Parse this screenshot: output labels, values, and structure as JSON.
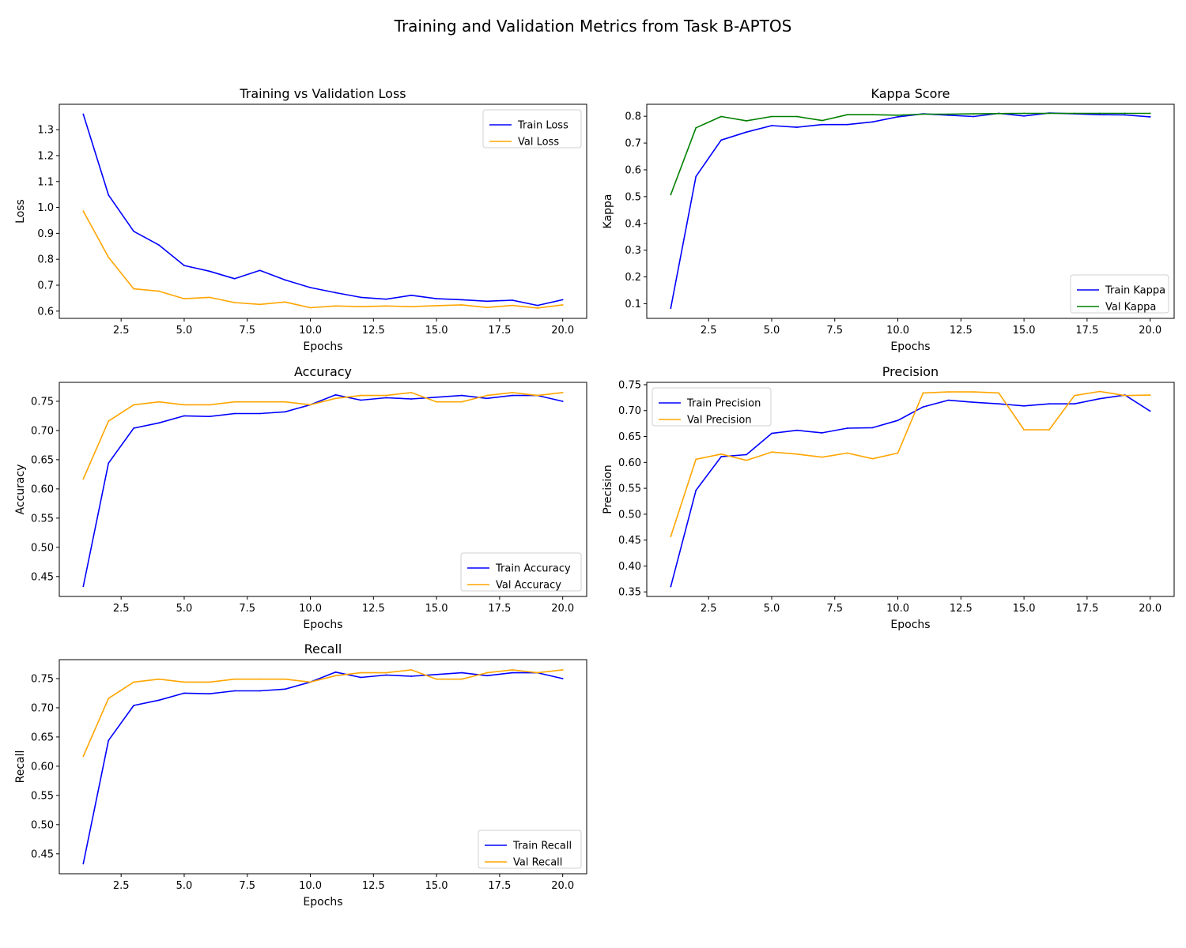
{
  "figure_title": "Training and Validation Metrics from Task B-APTOS",
  "colors": {
    "train": "#0000ff",
    "val": "#ffa500",
    "val_kappa": "#008000"
  },
  "chart_data": [
    {
      "type": "line",
      "title": "Training vs Validation Loss",
      "xlabel": "Epochs",
      "ylabel": "Loss",
      "xlim": [
        0.05,
        20.95
      ],
      "ylim": [
        0.572,
        1.398
      ],
      "xticks": [
        2.5,
        5.0,
        7.5,
        10.0,
        12.5,
        15.0,
        17.5,
        20.0
      ],
      "yticks": [
        0.6,
        0.7,
        0.8,
        0.9,
        1.0,
        1.1,
        1.2,
        1.3
      ],
      "legend": "top-right",
      "x": [
        1,
        2,
        3,
        4,
        5,
        6,
        7,
        8,
        9,
        10,
        11,
        12,
        13,
        14,
        15,
        16,
        17,
        18,
        19,
        20
      ],
      "series": [
        {
          "name": "Train Loss",
          "color": "#0000ff",
          "values": [
            1.36,
            1.048,
            0.908,
            0.855,
            0.776,
            0.754,
            0.725,
            0.757,
            0.72,
            0.691,
            0.671,
            0.653,
            0.646,
            0.661,
            0.648,
            0.644,
            0.638,
            0.642,
            0.622,
            0.644
          ]
        },
        {
          "name": "Val Loss",
          "color": "#ffa500",
          "values": [
            0.986,
            0.808,
            0.686,
            0.677,
            0.648,
            0.653,
            0.633,
            0.626,
            0.635,
            0.613,
            0.62,
            0.617,
            0.62,
            0.617,
            0.621,
            0.624,
            0.614,
            0.622,
            0.612,
            0.624
          ]
        }
      ]
    },
    {
      "type": "line",
      "title": "Kappa Score",
      "xlabel": "Epochs",
      "ylabel": "Kappa",
      "xlim": [
        0.05,
        20.95
      ],
      "ylim": [
        0.0452,
        0.8448
      ],
      "xticks": [
        2.5,
        5.0,
        7.5,
        10.0,
        12.5,
        15.0,
        17.5,
        20.0
      ],
      "yticks": [
        0.1,
        0.2,
        0.3,
        0.4,
        0.5,
        0.6,
        0.7,
        0.8
      ],
      "legend": "bottom-right",
      "x": [
        1,
        2,
        3,
        4,
        5,
        6,
        7,
        8,
        9,
        10,
        11,
        12,
        13,
        14,
        15,
        16,
        17,
        18,
        19,
        20
      ],
      "series": [
        {
          "name": "Train Kappa",
          "color": "#0000ff",
          "values": [
            0.083,
            0.575,
            0.711,
            0.741,
            0.765,
            0.759,
            0.769,
            0.769,
            0.779,
            0.798,
            0.809,
            0.804,
            0.799,
            0.811,
            0.801,
            0.812,
            0.809,
            0.806,
            0.805,
            0.798
          ]
        },
        {
          "name": "Val Kappa",
          "color": "#008000",
          "values": [
            0.507,
            0.757,
            0.799,
            0.783,
            0.799,
            0.799,
            0.784,
            0.806,
            0.806,
            0.804,
            0.808,
            0.808,
            0.809,
            0.81,
            0.811,
            0.811,
            0.811,
            0.811,
            0.811,
            0.811
          ]
        }
      ]
    },
    {
      "type": "line",
      "title": "Accuracy",
      "xlabel": "Epochs",
      "ylabel": "Accuracy",
      "xlim": [
        0.05,
        20.95
      ],
      "ylim": [
        0.4159,
        0.7824
      ],
      "xticks": [
        2.5,
        5.0,
        7.5,
        10.0,
        12.5,
        15.0,
        17.5,
        20.0
      ],
      "yticks": [
        0.45,
        0.5,
        0.55,
        0.6,
        0.65,
        0.7,
        0.75
      ],
      "legend": "bottom-right",
      "x": [
        1,
        2,
        3,
        4,
        5,
        6,
        7,
        8,
        9,
        10,
        11,
        12,
        13,
        14,
        15,
        16,
        17,
        18,
        19,
        20
      ],
      "series": [
        {
          "name": "Train Accuracy",
          "color": "#0000ff",
          "values": [
            0.433,
            0.644,
            0.704,
            0.713,
            0.725,
            0.724,
            0.729,
            0.729,
            0.732,
            0.744,
            0.761,
            0.752,
            0.756,
            0.754,
            0.757,
            0.76,
            0.755,
            0.76,
            0.76,
            0.75
          ]
        },
        {
          "name": "Val Accuracy",
          "color": "#ffa500",
          "values": [
            0.617,
            0.716,
            0.744,
            0.749,
            0.744,
            0.744,
            0.749,
            0.749,
            0.749,
            0.744,
            0.755,
            0.76,
            0.76,
            0.765,
            0.749,
            0.749,
            0.76,
            0.765,
            0.76,
            0.765
          ]
        }
      ]
    },
    {
      "type": "line",
      "title": "Precision",
      "xlabel": "Epochs",
      "ylabel": "Precision",
      "xlim": [
        0.05,
        20.95
      ],
      "ylim": [
        0.3412,
        0.7545
      ],
      "xticks": [
        2.5,
        5.0,
        7.5,
        10.0,
        12.5,
        15.0,
        17.5,
        20.0
      ],
      "yticks": [
        0.35,
        0.4,
        0.45,
        0.5,
        0.55,
        0.6,
        0.65,
        0.7,
        0.75
      ],
      "legend": "top-left",
      "x": [
        1,
        2,
        3,
        4,
        5,
        6,
        7,
        8,
        9,
        10,
        11,
        12,
        13,
        14,
        15,
        16,
        17,
        18,
        19,
        20
      ],
      "series": [
        {
          "name": "Train Precision",
          "color": "#0000ff",
          "values": [
            0.36,
            0.546,
            0.611,
            0.615,
            0.656,
            0.662,
            0.657,
            0.666,
            0.667,
            0.681,
            0.707,
            0.72,
            0.716,
            0.713,
            0.709,
            0.713,
            0.713,
            0.723,
            0.73,
            0.699
          ]
        },
        {
          "name": "Val Precision",
          "color": "#ffa500",
          "values": [
            0.457,
            0.606,
            0.616,
            0.604,
            0.62,
            0.616,
            0.61,
            0.618,
            0.607,
            0.618,
            0.734,
            0.736,
            0.736,
            0.734,
            0.663,
            0.663,
            0.729,
            0.737,
            0.729,
            0.73
          ]
        }
      ]
    },
    {
      "type": "line",
      "title": "Recall",
      "xlabel": "Epochs",
      "ylabel": "Recall",
      "xlim": [
        0.05,
        20.95
      ],
      "ylim": [
        0.4159,
        0.7824
      ],
      "xticks": [
        2.5,
        5.0,
        7.5,
        10.0,
        12.5,
        15.0,
        17.5,
        20.0
      ],
      "yticks": [
        0.45,
        0.5,
        0.55,
        0.6,
        0.65,
        0.7,
        0.75
      ],
      "legend": "bottom-right",
      "x": [
        1,
        2,
        3,
        4,
        5,
        6,
        7,
        8,
        9,
        10,
        11,
        12,
        13,
        14,
        15,
        16,
        17,
        18,
        19,
        20
      ],
      "series": [
        {
          "name": "Train Recall",
          "color": "#0000ff",
          "values": [
            0.433,
            0.644,
            0.704,
            0.713,
            0.725,
            0.724,
            0.729,
            0.729,
            0.732,
            0.744,
            0.761,
            0.752,
            0.756,
            0.754,
            0.757,
            0.76,
            0.755,
            0.76,
            0.76,
            0.75
          ]
        },
        {
          "name": "Val Recall",
          "color": "#ffa500",
          "values": [
            0.617,
            0.716,
            0.744,
            0.749,
            0.744,
            0.744,
            0.749,
            0.749,
            0.749,
            0.744,
            0.755,
            0.76,
            0.76,
            0.765,
            0.749,
            0.749,
            0.76,
            0.765,
            0.76,
            0.765
          ]
        }
      ]
    }
  ]
}
